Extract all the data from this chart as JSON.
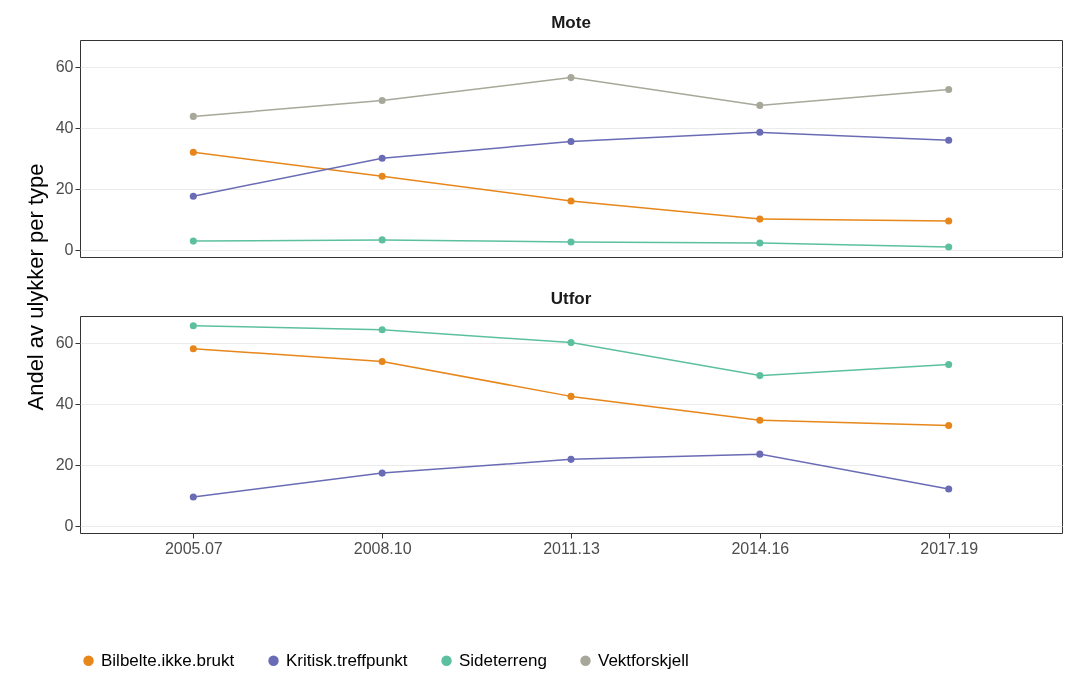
{
  "chart_data": [
    {
      "type": "line",
      "title": "Mote",
      "ylabel": "Andel av ulykker per type",
      "categories": [
        "2005.07",
        "2008.10",
        "2011.13",
        "2014.16",
        "2017.19"
      ],
      "ylim": [
        -2.3,
        68.7
      ],
      "yticks": [
        0,
        20,
        40,
        60
      ],
      "grid": "y",
      "marker": "circle",
      "legend": "bottom",
      "tick_labels": "y",
      "series": [
        {
          "name": "Bilbelte.ikke.brukt",
          "color": "#e7861a",
          "values": [
            32,
            24.1,
            16,
            10.1,
            9.5
          ]
        },
        {
          "name": "Kritisk.treffpunkt",
          "color": "#6a6bb5",
          "values": [
            17.6,
            30,
            35.5,
            38.5,
            35.9
          ]
        },
        {
          "name": "Sideterreng",
          "color": "#5cc0a0",
          "values": [
            2.9,
            3.3,
            2.6,
            2.3,
            1
          ]
        },
        {
          "name": "Vektforskjell",
          "color": "#a8a89a",
          "values": [
            43.7,
            48.9,
            56.4,
            47.3,
            52.5
          ]
        }
      ]
    },
    {
      "type": "line",
      "title": "Utfor",
      "categories": [
        "2005.07",
        "2008.10",
        "2011.13",
        "2014.16",
        "2017.19"
      ],
      "ylim": [
        -2.3,
        68.7
      ],
      "yticks": [
        0,
        20,
        40,
        60
      ],
      "grid": "y",
      "marker": "circle",
      "series": [
        {
          "color": "#e7861a",
          "values": [
            58,
            53.8,
            42.4,
            34.6,
            32.9
          ]
        },
        {
          "color": "#6a6bb5",
          "values": [
            9.5,
            17.3,
            21.8,
            23.5,
            12.1
          ]
        },
        {
          "color": "#5cc0a0",
          "values": [
            65.5,
            64.2,
            60,
            49.2,
            52.8
          ]
        }
      ]
    }
  ]
}
